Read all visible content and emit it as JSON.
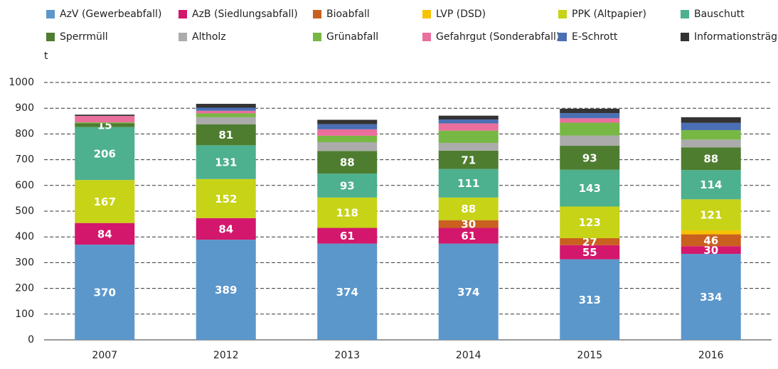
{
  "chart_data": {
    "type": "stacked_bar",
    "y_axis_label": "t",
    "categories": [
      "2007",
      "2012",
      "2013",
      "2014",
      "2015",
      "2016"
    ],
    "ylim": [
      0,
      1000
    ],
    "yticks": [
      0,
      100,
      200,
      300,
      400,
      500,
      600,
      700,
      800,
      900,
      1000
    ],
    "grid": true,
    "series": [
      {
        "name": "AzV (Gewerbeabfall)",
        "color": "#5b97cb",
        "values": [
          370,
          389,
          374,
          374,
          313,
          334
        ],
        "value_labels": [
          "370",
          "389",
          "374",
          "374",
          "313",
          "334"
        ]
      },
      {
        "name": "AzB (Siedlungsabfall)",
        "color": "#d3176c",
        "values": [
          84,
          84,
          61,
          61,
          55,
          30
        ],
        "value_labels": [
          "84",
          "84",
          "61",
          "61",
          "55",
          "30"
        ]
      },
      {
        "name": "Bioabfall",
        "color": "#c9601f",
        "values": [
          0,
          0,
          0,
          30,
          27,
          46
        ],
        "value_labels": [
          null,
          null,
          null,
          "30",
          "27",
          "46"
        ]
      },
      {
        "name": "LVP (DSD)",
        "color": "#f7c200",
        "values": [
          0,
          0,
          0,
          0,
          0,
          15
        ],
        "value_labels": [
          null,
          null,
          null,
          null,
          null,
          null
        ]
      },
      {
        "name": "PPK (Altpapier)",
        "color": "#c7d316",
        "values": [
          167,
          152,
          118,
          88,
          123,
          121
        ],
        "value_labels": [
          "167",
          "152",
          "118",
          "88",
          "123",
          "121"
        ]
      },
      {
        "name": "Bauschutt",
        "color": "#4db08f",
        "values": [
          206,
          131,
          93,
          111,
          143,
          114
        ],
        "value_labels": [
          "206",
          "131",
          "93",
          "111",
          "143",
          "114"
        ]
      },
      {
        "name": "Sperrmüll",
        "color": "#4e7d2f",
        "values": [
          15,
          81,
          88,
          71,
          93,
          88
        ],
        "value_labels": [
          "15",
          "81",
          "88",
          "71",
          "93",
          "88"
        ]
      },
      {
        "name": "Altholz",
        "color": "#ababab",
        "values": [
          0,
          28,
          34,
          30,
          40,
          30
        ],
        "value_labels": [
          null,
          null,
          null,
          null,
          null,
          null
        ]
      },
      {
        "name": "Grünabfall",
        "color": "#77b844",
        "values": [
          3,
          15,
          25,
          48,
          50,
          37
        ],
        "value_labels": [
          null,
          null,
          null,
          null,
          null,
          null
        ]
      },
      {
        "name": "Gefahrgut (Sonderabfall)",
        "color": "#ea6f9c",
        "values": [
          25,
          10,
          25,
          28,
          17,
          0
        ],
        "value_labels": [
          null,
          null,
          null,
          null,
          null,
          null
        ]
      },
      {
        "name": "E-Schrott",
        "color": "#4a6fb5",
        "values": [
          0,
          12,
          20,
          15,
          20,
          28
        ],
        "value_labels": [
          null,
          null,
          null,
          null,
          null,
          null
        ]
      },
      {
        "name": "Informationsträger",
        "color": "#333333",
        "values": [
          5,
          15,
          17,
          15,
          17,
          22
        ],
        "value_labels": [
          null,
          null,
          null,
          null,
          null,
          null
        ]
      }
    ]
  }
}
